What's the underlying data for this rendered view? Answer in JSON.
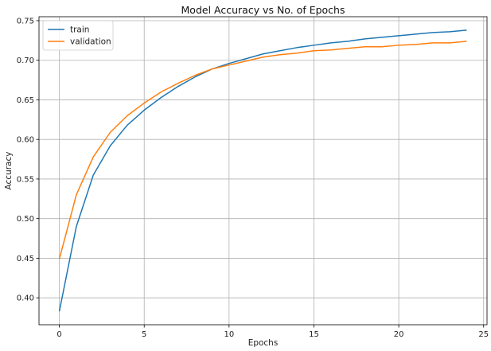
{
  "chart_data": {
    "type": "line",
    "title": "Model Accuracy vs No. of Epochs",
    "xlabel": "Epochs",
    "ylabel": "Accuracy",
    "xlim": [
      -1.2,
      25.2
    ],
    "ylim": [
      0.366,
      0.755
    ],
    "xticks": [
      0,
      5,
      10,
      15,
      20,
      25
    ],
    "yticks": [
      0.4,
      0.45,
      0.5,
      0.55,
      0.6,
      0.65,
      0.7,
      0.75
    ],
    "ytick_labels": [
      "0.40",
      "0.45",
      "0.50",
      "0.55",
      "0.60",
      "0.65",
      "0.70",
      "0.75"
    ],
    "grid": true,
    "legend": "top-left",
    "x": [
      0,
      1,
      2,
      3,
      4,
      5,
      6,
      7,
      8,
      9,
      10,
      11,
      12,
      13,
      14,
      15,
      16,
      17,
      18,
      19,
      20,
      21,
      22,
      23,
      24
    ],
    "series": [
      {
        "name": "train",
        "color": "#1f77b4",
        "values": [
          0.383,
          0.49,
          0.555,
          0.592,
          0.618,
          0.637,
          0.653,
          0.667,
          0.679,
          0.689,
          0.696,
          0.702,
          0.708,
          0.712,
          0.716,
          0.719,
          0.722,
          0.724,
          0.727,
          0.729,
          0.731,
          0.733,
          0.735,
          0.736,
          0.738
        ]
      },
      {
        "name": "validation",
        "color": "#ff7f0e",
        "values": [
          0.449,
          0.53,
          0.578,
          0.609,
          0.63,
          0.646,
          0.66,
          0.671,
          0.681,
          0.689,
          0.694,
          0.699,
          0.704,
          0.707,
          0.709,
          0.712,
          0.713,
          0.715,
          0.717,
          0.717,
          0.719,
          0.72,
          0.722,
          0.722,
          0.724
        ]
      }
    ]
  }
}
